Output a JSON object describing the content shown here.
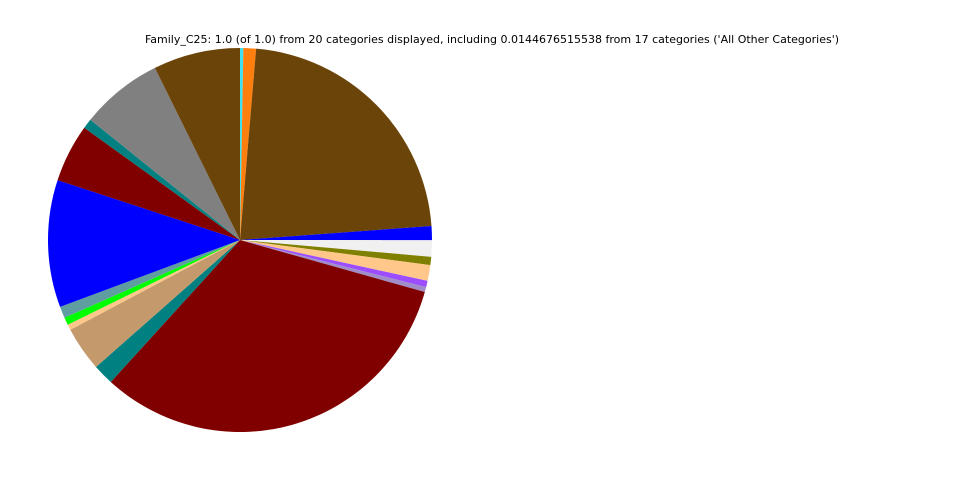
{
  "chart_data": {
    "type": "pie",
    "title": "Family_C25: 1.0 (of 1.0) from 20 categories displayed, including 0.0144676515538 from 17 categories ('All Other Categories')",
    "direction": "clockwise from top",
    "slices": [
      {
        "value": 0.0028,
        "color": "#40e0f0"
      },
      {
        "value": 0.0106,
        "color": "#ff7f0e"
      },
      {
        "value": 0.225,
        "color": "#6b4409"
      },
      {
        "value": 0.0117,
        "color": "#0000ff"
      },
      {
        "value": 0.0139,
        "color": "#f0f0f0"
      },
      {
        "value": 0.0069,
        "color": "#808000"
      },
      {
        "value": 0.0133,
        "color": "#ffc88a"
      },
      {
        "value": 0.0053,
        "color": "#9b4dff"
      },
      {
        "value": 0.0042,
        "color": "#a08cc8"
      },
      {
        "value": 0.3239,
        "color": "#800000"
      },
      {
        "value": 0.0175,
        "color": "#008080"
      },
      {
        "value": 0.0375,
        "color": "#c49a6c"
      },
      {
        "value": 0.0047,
        "color": "#ffc88a"
      },
      {
        "value": 0.0064,
        "color": "#00ff00"
      },
      {
        "value": 0.0097,
        "color": "#5f9ea0"
      },
      {
        "value": 0.1072,
        "color": "#0000ff"
      },
      {
        "value": 0.0489,
        "color": "#800000"
      },
      {
        "value": 0.0083,
        "color": "#008080"
      },
      {
        "value": 0.0692,
        "color": "#808080"
      },
      {
        "value": 0.0731,
        "color": "#6b4409"
      }
    ]
  }
}
